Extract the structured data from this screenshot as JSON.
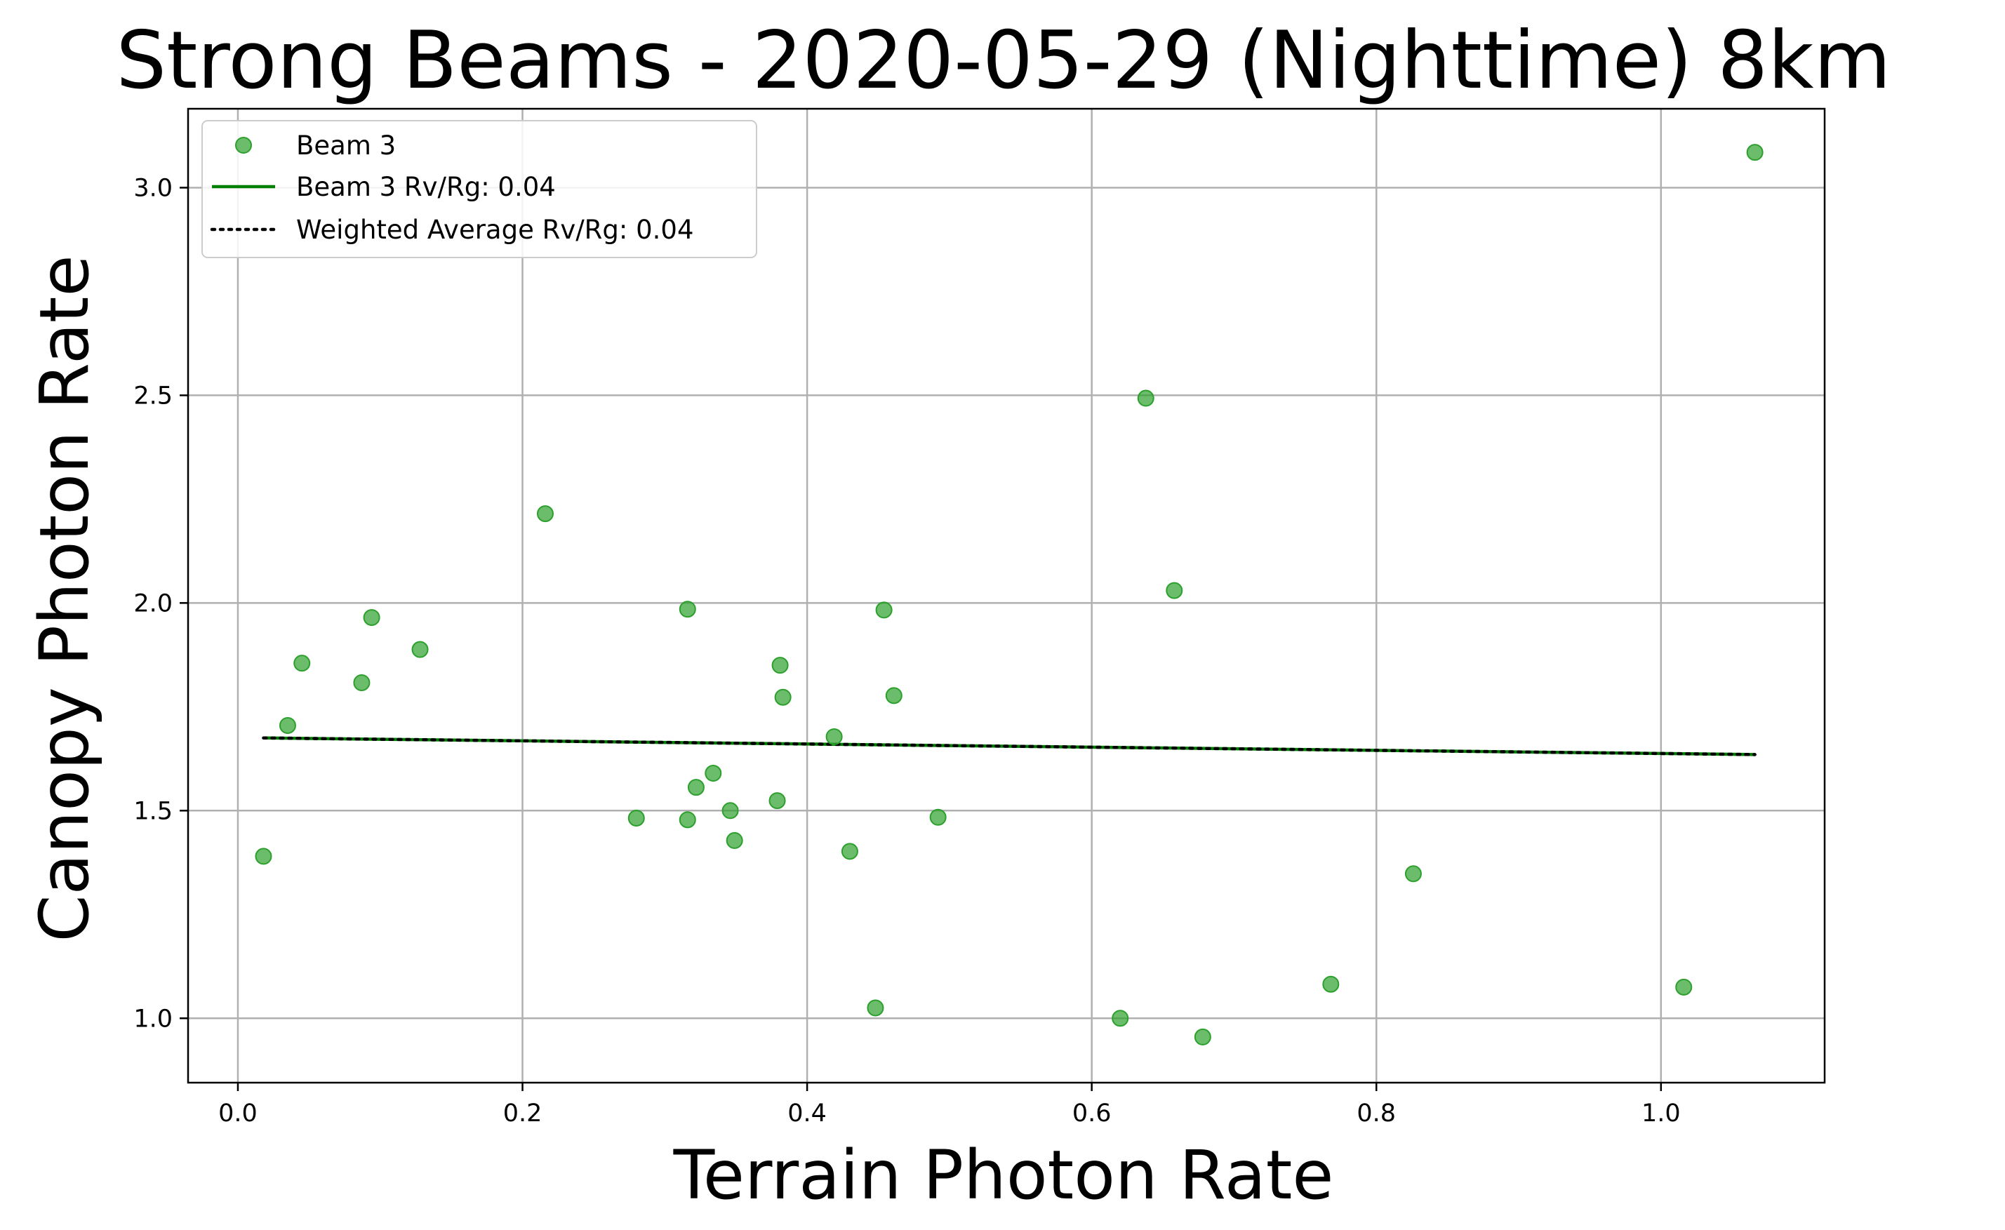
{
  "chart_data": {
    "type": "scatter",
    "title": "Strong Beams - 2020-05-29 (Nighttime) 8km",
    "xlabel": "Terrain Photon Rate",
    "ylabel": "Canopy Photon Rate",
    "xlim": [
      -0.035,
      1.115
    ],
    "ylim": [
      0.845,
      3.19
    ],
    "xticks": [
      0.0,
      0.2,
      0.4,
      0.6,
      0.8,
      1.0
    ],
    "xtick_labels": [
      "0.0",
      "0.2",
      "0.4",
      "0.6",
      "0.8",
      "1.0"
    ],
    "yticks": [
      1.0,
      1.5,
      2.0,
      2.5,
      3.0
    ],
    "ytick_labels": [
      "1.0",
      "1.5",
      "2.0",
      "2.5",
      "3.0"
    ],
    "grid": true,
    "legend_position": "top-left",
    "series": [
      {
        "name": "Beam 3",
        "kind": "scatter",
        "color": "#2ca02c",
        "points": [
          [
            0.018,
            1.39
          ],
          [
            0.035,
            1.705
          ],
          [
            0.045,
            1.855
          ],
          [
            0.087,
            1.808
          ],
          [
            0.094,
            1.965
          ],
          [
            0.128,
            1.888
          ],
          [
            0.216,
            2.215
          ],
          [
            0.28,
            1.482
          ],
          [
            0.316,
            1.985
          ],
          [
            0.316,
            1.478
          ],
          [
            0.322,
            1.556
          ],
          [
            0.334,
            1.59
          ],
          [
            0.346,
            1.5
          ],
          [
            0.349,
            1.428
          ],
          [
            0.379,
            1.524
          ],
          [
            0.381,
            1.85
          ],
          [
            0.383,
            1.773
          ],
          [
            0.419,
            1.678
          ],
          [
            0.43,
            1.402
          ],
          [
            0.448,
            1.025
          ],
          [
            0.454,
            1.983
          ],
          [
            0.461,
            1.777
          ],
          [
            0.492,
            1.484
          ],
          [
            0.62,
            1.0
          ],
          [
            0.638,
            2.493
          ],
          [
            0.658,
            2.03
          ],
          [
            0.678,
            0.955
          ],
          [
            0.768,
            1.082
          ],
          [
            0.826,
            1.348
          ],
          [
            1.016,
            1.075
          ],
          [
            1.066,
            3.085
          ]
        ]
      },
      {
        "name": "Beam 3 Rv/Rg: 0.04",
        "kind": "line",
        "color": "#008000",
        "points": [
          [
            0.018,
            1.675
          ],
          [
            1.066,
            1.635
          ]
        ]
      },
      {
        "name": "Weighted Average Rv/Rg: 0.04",
        "kind": "dotted-line",
        "color": "#000000",
        "points": [
          [
            0.018,
            1.675
          ],
          [
            1.066,
            1.635
          ]
        ]
      }
    ]
  }
}
